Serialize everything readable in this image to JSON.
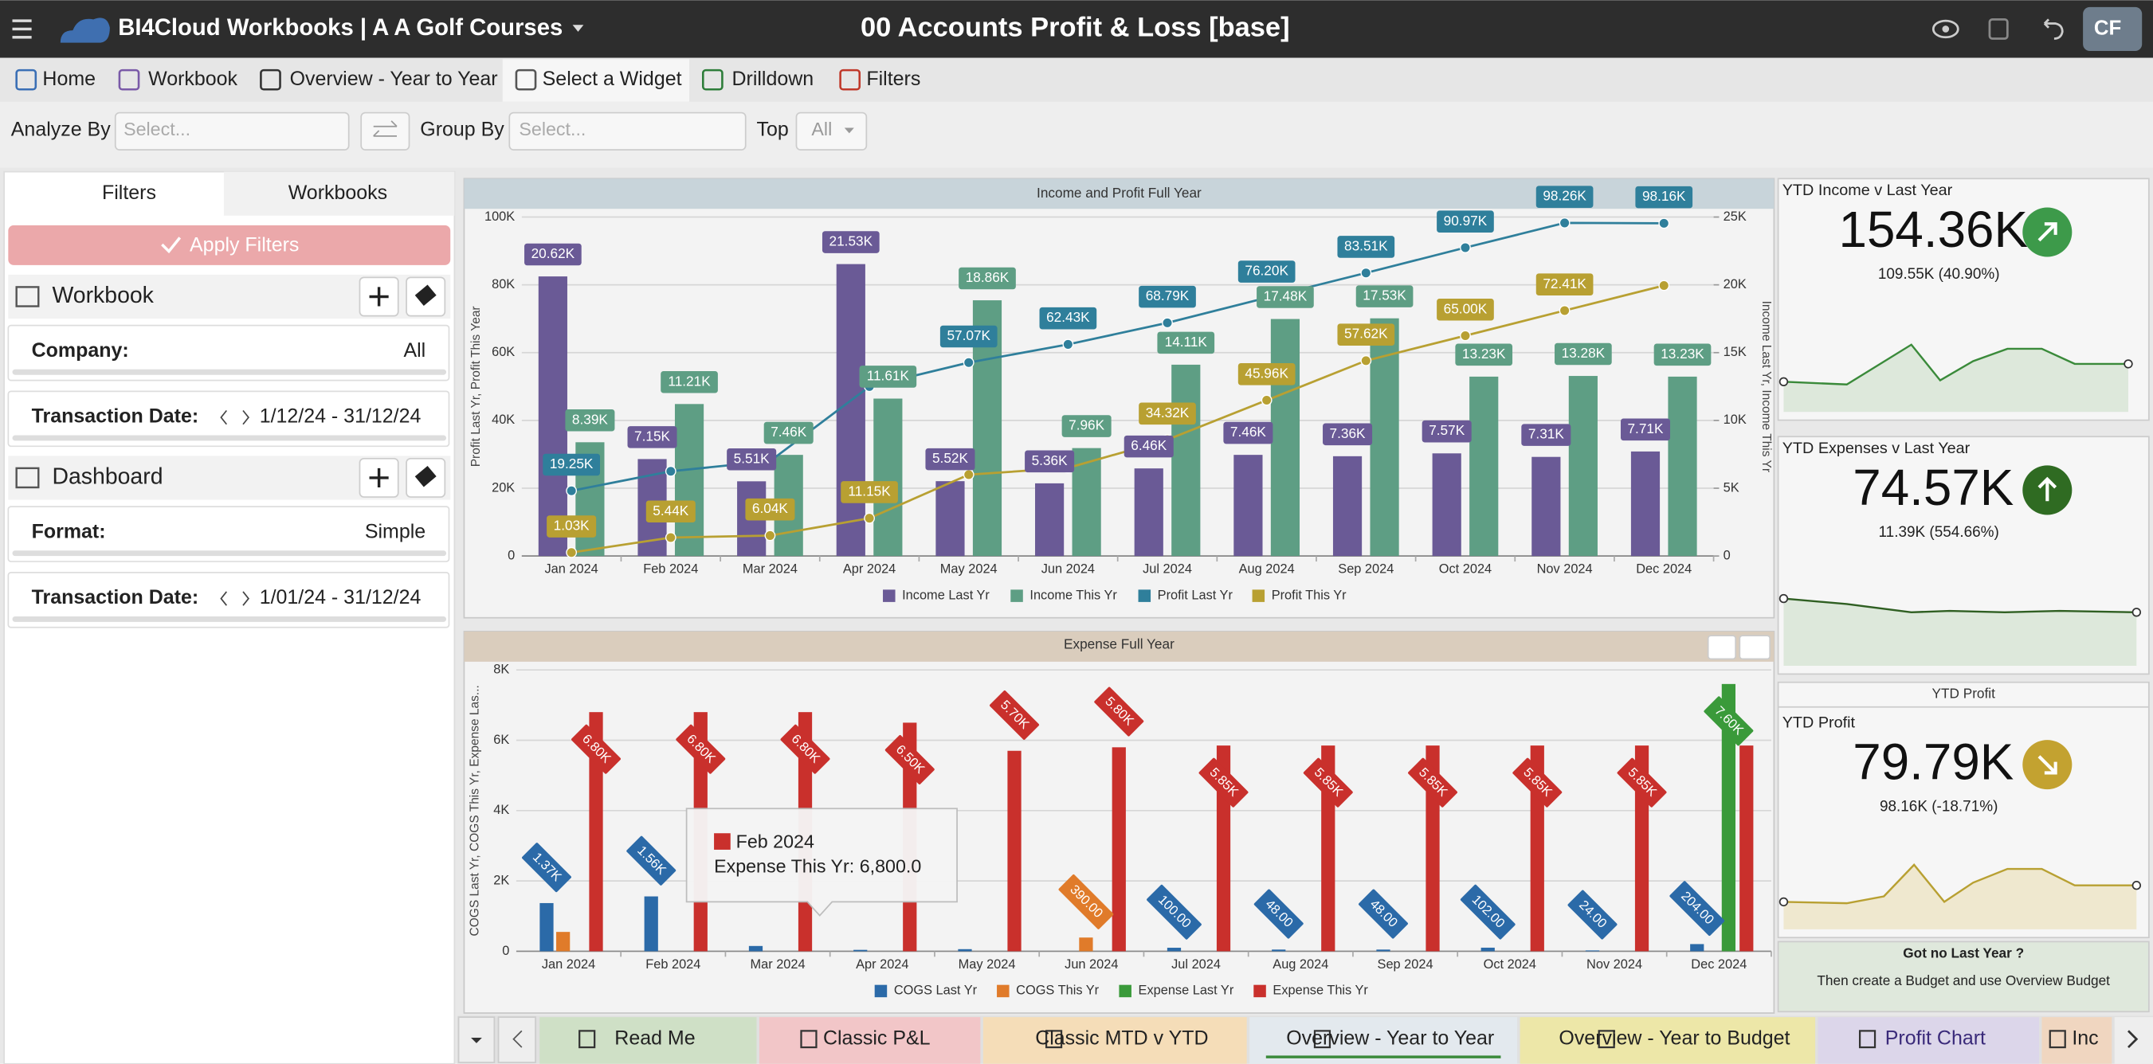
{
  "header": {
    "app": "BI4Cloud Workbooks | A A Golf Courses",
    "title": "00 Accounts Profit & Loss [base]",
    "user": "CF"
  },
  "toolbar": [
    "Home",
    "Workbook",
    "Overview - Year to Year",
    "Select a Widget",
    "Drilldown",
    "Filters"
  ],
  "query": {
    "analyze_by": "Analyze By",
    "analyze_select": "Select...",
    "group_by": "Group By",
    "group_select": "Select...",
    "top": "Top",
    "top_value": "All"
  },
  "sidebar": {
    "tabs": [
      "Filters",
      "Workbooks"
    ],
    "apply": "Apply Filters",
    "workbook": {
      "title": "Workbook",
      "rows": [
        {
          "label": "Company:",
          "value": "All"
        },
        {
          "label": "Transaction Date:",
          "value": "1/12/24 - 31/12/24"
        }
      ]
    },
    "dashboard": {
      "title": "Dashboard",
      "rows": [
        {
          "label": "Format:",
          "value": "Simple"
        },
        {
          "label": "Transaction Date:",
          "value": "1/01/24 - 31/12/24"
        }
      ]
    }
  },
  "chart_data": [
    {
      "type": "bar",
      "title": "Income and Profit Full Year",
      "y_label": "Profit Last Yr, Profit This Year",
      "y2_label": "Income Last Yr, Income This Yr",
      "categories": [
        "Jan 2024",
        "Feb 2024",
        "Mar 2024",
        "Apr 2024",
        "May 2024",
        "Jun 2024",
        "Jul 2024",
        "Aug 2024",
        "Sep 2024",
        "Oct 2024",
        "Nov 2024",
        "Dec 2024"
      ],
      "ylim": [
        0,
        100000
      ],
      "yticks": [
        0,
        {
          "value": 20000,
          "label": "20K"
        },
        {
          "value": 40000,
          "label": "40K"
        },
        {
          "value": 60000,
          "label": "60K"
        },
        {
          "value": 80000,
          "label": "80K"
        },
        {
          "value": 100000,
          "label": "100K"
        }
      ],
      "y2lim": [
        0,
        25000
      ],
      "y2ticks": [
        0,
        {
          "value": 5000,
          "label": "5K"
        },
        {
          "value": 10000,
          "label": "10K"
        },
        {
          "value": 15000,
          "label": "15K"
        },
        {
          "value": 20000,
          "label": "20K"
        },
        {
          "value": 25000,
          "label": "25K"
        }
      ],
      "grid": true,
      "series": [
        {
          "name": "Income Last Yr",
          "type": "bar",
          "axis": "y2",
          "color": "#6a5a96",
          "values": [
            20620,
            7150,
            5510,
            21530,
            5520,
            5360,
            6460,
            7460,
            7360,
            7570,
            7310,
            7710
          ],
          "value_labels": [
            "20.62K",
            "7.15K",
            "5.51K",
            "21.53K",
            "5.52K",
            "5.36K",
            "6.46K",
            "7.46K",
            "7.36K",
            "7.57K",
            "7.31K",
            "7.71K"
          ]
        },
        {
          "name": "Income This Yr",
          "type": "bar",
          "axis": "y2",
          "color": "#5e9e84",
          "values": [
            8390,
            11210,
            7460,
            11610,
            18860,
            7960,
            14110,
            17480,
            17530,
            13230,
            13280,
            13230
          ],
          "value_labels": [
            "8.39K",
            "11.21K",
            "7.46K",
            "11.61K",
            "18.86K",
            "7.96K",
            "14.11K",
            "17.48K",
            "17.53K",
            "13.23K",
            "13.28K",
            "13.23K"
          ]
        },
        {
          "name": "Profit Last Yr",
          "type": "line",
          "color": "#2f7f9b",
          "values": [
            19250,
            25000,
            28000,
            50000,
            57070,
            62430,
            68790,
            76200,
            83510,
            90970,
            98260,
            98160
          ],
          "value_labels": [
            "19.25K",
            null,
            null,
            null,
            "57.07K",
            "62.43K",
            "68.79K",
            "76.20K",
            "83.51K",
            "90.97K",
            "98.26K",
            "98.16K"
          ]
        },
        {
          "name": "Profit This Yr",
          "type": "line",
          "color": "#b8a032",
          "values": [
            1030,
            5440,
            6040,
            11150,
            24000,
            26000,
            34320,
            45960,
            57620,
            65000,
            72410,
            79800
          ],
          "value_labels": [
            "1.03K",
            "5.44K",
            "6.04K",
            "11.15K",
            null,
            null,
            "34.32K",
            "45.96K",
            "57.62K",
            "65.00K",
            "72.41K",
            null
          ]
        }
      ]
    },
    {
      "type": "bar",
      "title": "Expense Full Year",
      "y_label": "COGS Last Yr, COGS This Yr, Expense Las...",
      "categories": [
        "Jan 2024",
        "Feb 2024",
        "Mar 2024",
        "Apr 2024",
        "May 2024",
        "Jun 2024",
        "Jul 2024",
        "Aug 2024",
        "Sep 2024",
        "Oct 2024",
        "Nov 2024",
        "Dec 2024"
      ],
      "ylim": [
        0,
        8000
      ],
      "yticks": [
        0,
        {
          "value": 2000,
          "label": "2K"
        },
        {
          "value": 4000,
          "label": "4K"
        },
        {
          "value": 6000,
          "label": "6K"
        },
        {
          "value": 8000,
          "label": "8K"
        }
      ],
      "grid": true,
      "series": [
        {
          "name": "COGS Last Yr",
          "type": "bar",
          "color": "#2b6aa8",
          "values": [
            1370,
            1560,
            150,
            40,
            60,
            null,
            100,
            48,
            48,
            102,
            24,
            204
          ],
          "value_labels": [
            "1.37K",
            "1.56K",
            null,
            null,
            null,
            null,
            "100.00",
            "48.00",
            "48.00",
            "102.00",
            "24.00",
            "204.00"
          ]
        },
        {
          "name": "COGS This Yr",
          "type": "bar",
          "color": "#e07b2a",
          "values": [
            550,
            null,
            null,
            null,
            null,
            390,
            null,
            null,
            null,
            null,
            null,
            null
          ],
          "value_labels": [
            null,
            null,
            null,
            null,
            null,
            "390.00",
            null,
            null,
            null,
            null,
            null,
            null
          ]
        },
        {
          "name": "Expense Last Yr",
          "type": "bar",
          "color": "#3a9a3a",
          "values": [
            null,
            null,
            null,
            null,
            null,
            null,
            null,
            null,
            null,
            null,
            null,
            7600
          ],
          "value_labels": [
            null,
            null,
            null,
            null,
            null,
            null,
            null,
            null,
            null,
            null,
            null,
            "7.60K"
          ]
        },
        {
          "name": "Expense This Yr",
          "type": "bar",
          "color": "#c9302c",
          "values": [
            6800,
            6800,
            6800,
            6500,
            5700,
            5800,
            5850,
            5850,
            5850,
            5850,
            5850,
            5850
          ],
          "value_labels": [
            "6.80K",
            "6.80K",
            "6.80K",
            "6.50K",
            "5.70K",
            "5.80K",
            "5.85K",
            "5.85K",
            "5.85K",
            "5.85K",
            "5.85K",
            null
          ]
        }
      ],
      "tooltip": {
        "title": "Feb 2024",
        "text": "Expense This Yr: 6,800.0"
      }
    }
  ],
  "kpis": [
    {
      "title": "YTD Income v Last Year",
      "value": "154.36K",
      "change": "109.55K (40.90%)"
    },
    {
      "title": "YTD Expenses v Last Year",
      "value": "74.57K",
      "change": "11.39K (554.66%)"
    },
    {
      "header": "YTD Profit",
      "title": "YTD Profit",
      "value": "79.79K",
      "change": "98.16K (-18.71%)"
    }
  ],
  "note": {
    "title": "Got no Last Year ?",
    "text": "Then create a Budget and use Overview Budget"
  },
  "tabs": [
    "Read Me",
    "Classic P&L",
    "Classic MTD v YTD",
    "Overview - Year to Year",
    "Overview - Year to Budget",
    "Profit Chart",
    "Inc"
  ]
}
